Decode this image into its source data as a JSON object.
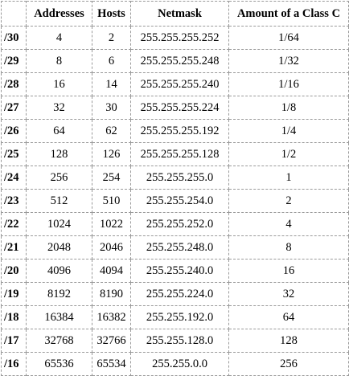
{
  "table": {
    "headers": [
      "",
      "Addresses",
      "Hosts",
      "Netmask",
      "Amount of a Class C"
    ],
    "rows": [
      [
        "/30",
        "4",
        "2",
        "255.255.255.252",
        "1/64"
      ],
      [
        "/29",
        "8",
        "6",
        "255.255.255.248",
        "1/32"
      ],
      [
        "/28",
        "16",
        "14",
        "255.255.255.240",
        "1/16"
      ],
      [
        "/27",
        "32",
        "30",
        "255.255.255.224",
        "1/8"
      ],
      [
        "/26",
        "64",
        "62",
        "255.255.255.192",
        "1/4"
      ],
      [
        "/25",
        "128",
        "126",
        "255.255.255.128",
        "1/2"
      ],
      [
        "/24",
        "256",
        "254",
        "255.255.255.0",
        "1"
      ],
      [
        "/23",
        "512",
        "510",
        "255.255.254.0",
        "2"
      ],
      [
        "/22",
        "1024",
        "1022",
        "255.255.252.0",
        "4"
      ],
      [
        "/21",
        "2048",
        "2046",
        "255.255.248.0",
        "8"
      ],
      [
        "/20",
        "4096",
        "4094",
        "255.255.240.0",
        "16"
      ],
      [
        "/19",
        "8192",
        "8190",
        "255.255.224.0",
        "32"
      ],
      [
        "/18",
        "16384",
        "16382",
        "255.255.192.0",
        "64"
      ],
      [
        "/17",
        "32768",
        "32766",
        "255.255.128.0",
        "128"
      ],
      [
        "/16",
        "65536",
        "65534",
        "255.255.0.0",
        "256"
      ]
    ]
  },
  "colors": {
    "border": "#9a9a9a",
    "text": "#000000",
    "background": "#ffffff"
  }
}
